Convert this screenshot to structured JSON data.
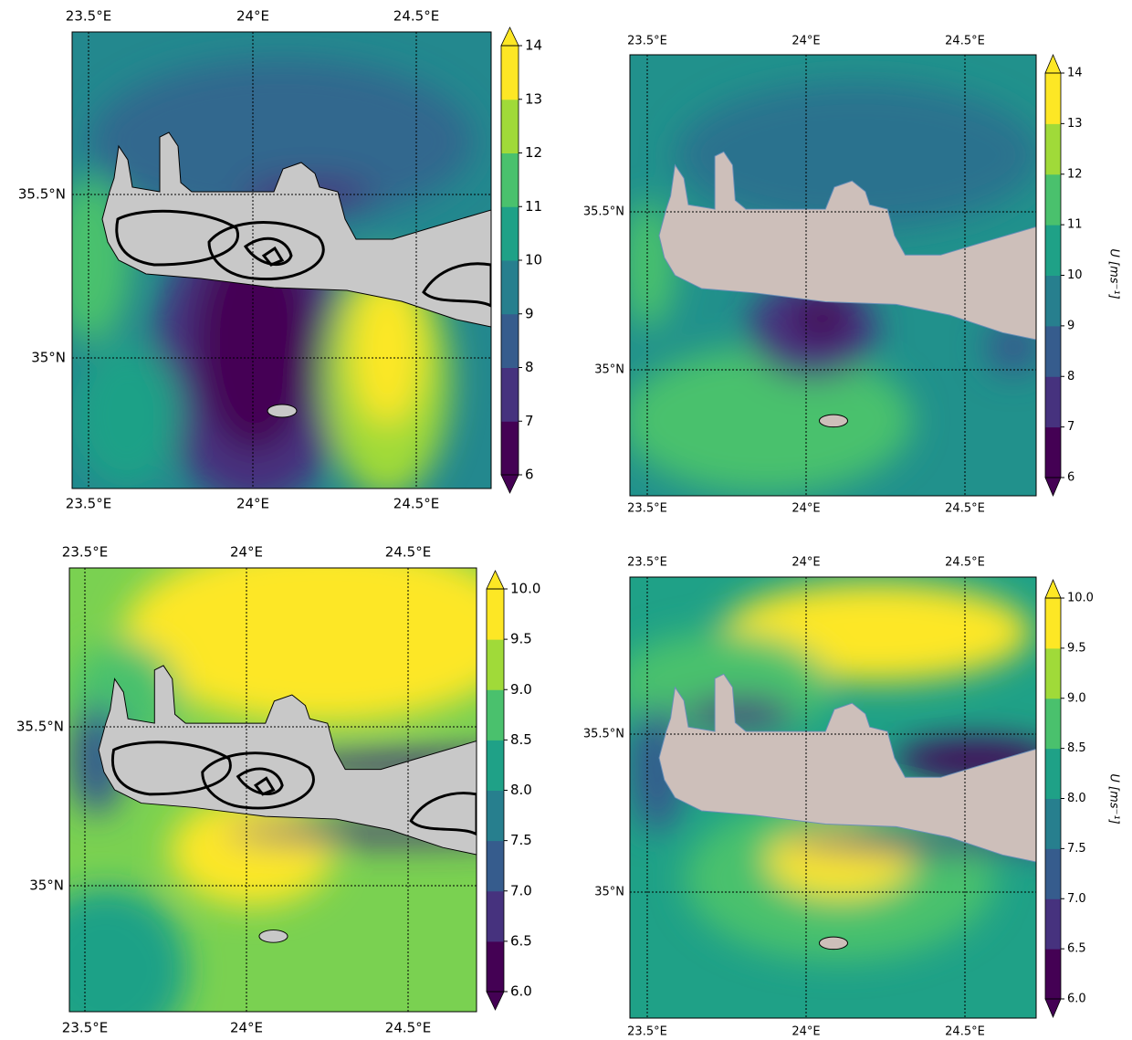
{
  "panels": [
    {
      "x_ticks": [
        "23.5°E",
        "24°E",
        "24.5°E"
      ],
      "y_ticks": [
        "35.5°N",
        "35°N"
      ],
      "colorbar": {
        "ticks": [
          6,
          7,
          8,
          9,
          10,
          11,
          12,
          13,
          14
        ],
        "colors": [
          "#440154",
          "#46327e",
          "#365c8d",
          "#277f8e",
          "#1fa187",
          "#4ac16d",
          "#a0da39",
          "#fde725"
        ]
      }
    },
    {
      "x_ticks": [
        "23.5°E",
        "24°E",
        "24.5°E"
      ],
      "y_ticks": [
        "35.5°N",
        "35°N"
      ],
      "colorbar": {
        "ticks": [
          6,
          7,
          8,
          9,
          10,
          11,
          12,
          13,
          14
        ],
        "label": "U [ms⁻¹]",
        "colors": [
          "#440154",
          "#46327e",
          "#365c8d",
          "#277f8e",
          "#1fa187",
          "#4ac16d",
          "#a0da39",
          "#fde725"
        ]
      }
    },
    {
      "x_ticks": [
        "23.5°E",
        "24°E",
        "24.5°E"
      ],
      "y_ticks": [
        "35.5°N",
        "35°N"
      ],
      "colorbar": {
        "ticks": [
          {
            "value": 6,
            "label": "6.0"
          },
          {
            "value": 6.5,
            "label": "6.5"
          },
          {
            "value": 7,
            "label": "7.0"
          },
          {
            "value": 7.5,
            "label": "7.5"
          },
          {
            "value": 8,
            "label": "8.0"
          },
          {
            "value": 8.5,
            "label": "8.5"
          },
          {
            "value": 9,
            "label": "9.0"
          },
          {
            "value": 9.5,
            "label": "9.5"
          },
          {
            "value": 10,
            "label": "10.0"
          }
        ],
        "colors": [
          "#440154",
          "#46327e",
          "#365c8d",
          "#277f8e",
          "#1fa187",
          "#4ac16d",
          "#a0da39",
          "#fde725"
        ]
      }
    },
    {
      "x_ticks": [
        "23.5°E",
        "24°E",
        "24.5°E"
      ],
      "y_ticks": [
        "35.5°N",
        "35°N"
      ],
      "colorbar": {
        "ticks": [
          {
            "value": 6,
            "label": "6.0"
          },
          {
            "value": 6.5,
            "label": "6.5"
          },
          {
            "value": 7,
            "label": "7.0"
          },
          {
            "value": 7.5,
            "label": "7.5"
          },
          {
            "value": 8,
            "label": "8.0"
          },
          {
            "value": 8.5,
            "label": "8.5"
          },
          {
            "value": 9,
            "label": "9.0"
          },
          {
            "value": 9.5,
            "label": "9.5"
          },
          {
            "value": 10,
            "label": "10.0"
          }
        ],
        "label": "U [ms⁻¹]",
        "colors": [
          "#440154",
          "#46327e",
          "#365c8d",
          "#277f8e",
          "#1fa187",
          "#4ac16d",
          "#a0da39",
          "#fde725"
        ]
      }
    }
  ]
}
